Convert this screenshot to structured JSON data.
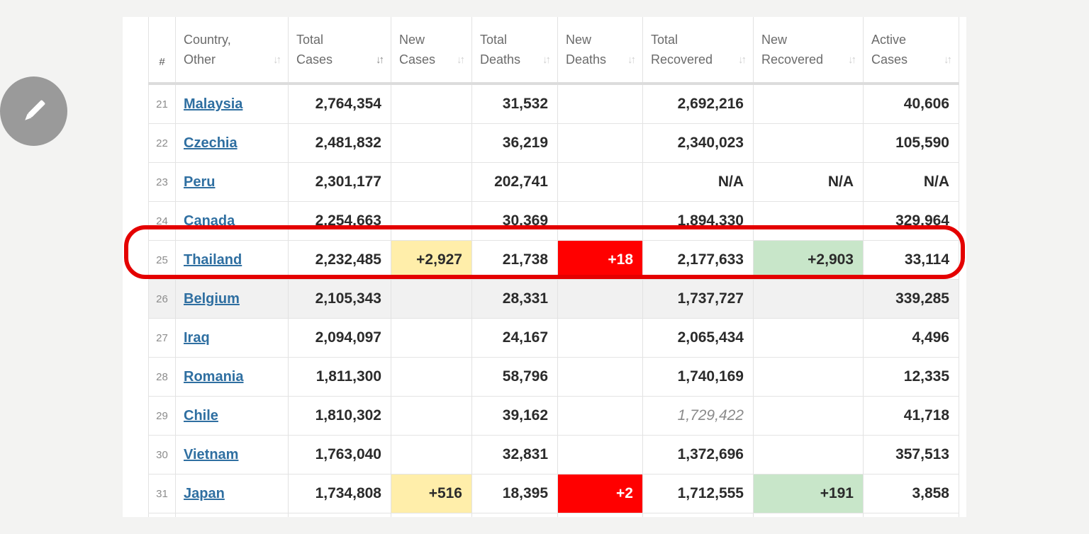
{
  "table": {
    "headers": {
      "hash": "#",
      "country": [
        "Country,",
        "Other"
      ],
      "total_cases": [
        "Total",
        "Cases"
      ],
      "new_cases": [
        "New",
        "Cases"
      ],
      "total_deaths": [
        "Total",
        "Deaths"
      ],
      "new_deaths": [
        "New",
        "Deaths"
      ],
      "total_recovered": [
        "Total",
        "Recovered"
      ],
      "new_recovered": [
        "New",
        "Recovered"
      ],
      "active_cases": [
        "Active",
        "Cases"
      ]
    },
    "sort_glyph": "↓↑",
    "rows": [
      {
        "num": "21",
        "country": "Malaysia",
        "total_cases": "2,764,354",
        "new_cases": "",
        "total_deaths": "31,532",
        "new_deaths": "",
        "total_recovered": "2,692,216",
        "new_recovered": "",
        "active_cases": "40,606"
      },
      {
        "num": "22",
        "country": "Czechia",
        "total_cases": "2,481,832",
        "new_cases": "",
        "total_deaths": "36,219",
        "new_deaths": "",
        "total_recovered": "2,340,023",
        "new_recovered": "",
        "active_cases": "105,590"
      },
      {
        "num": "23",
        "country": "Peru",
        "total_cases": "2,301,177",
        "new_cases": "",
        "total_deaths": "202,741",
        "new_deaths": "",
        "total_recovered": "N/A",
        "new_recovered": "N/A",
        "active_cases": "N/A"
      },
      {
        "num": "24",
        "country": "Canada",
        "total_cases": "2,254,663",
        "new_cases": "",
        "total_deaths": "30,369",
        "new_deaths": "",
        "total_recovered": "1,894,330",
        "new_recovered": "",
        "active_cases": "329,964"
      },
      {
        "num": "25",
        "country": "Thailand",
        "total_cases": "2,232,485",
        "new_cases": "+2,927",
        "total_deaths": "21,738",
        "new_deaths": "+18",
        "total_recovered": "2,177,633",
        "new_recovered": "+2,903",
        "active_cases": "33,114"
      },
      {
        "num": "26",
        "country": "Belgium",
        "total_cases": "2,105,343",
        "new_cases": "",
        "total_deaths": "28,331",
        "new_deaths": "",
        "total_recovered": "1,737,727",
        "new_recovered": "",
        "active_cases": "339,285"
      },
      {
        "num": "27",
        "country": "Iraq",
        "total_cases": "2,094,097",
        "new_cases": "",
        "total_deaths": "24,167",
        "new_deaths": "",
        "total_recovered": "2,065,434",
        "new_recovered": "",
        "active_cases": "4,496"
      },
      {
        "num": "28",
        "country": "Romania",
        "total_cases": "1,811,300",
        "new_cases": "",
        "total_deaths": "58,796",
        "new_deaths": "",
        "total_recovered": "1,740,169",
        "new_recovered": "",
        "active_cases": "12,335"
      },
      {
        "num": "29",
        "country": "Chile",
        "total_cases": "1,810,302",
        "new_cases": "",
        "total_deaths": "39,162",
        "new_deaths": "",
        "total_recovered": "1,729,422",
        "new_recovered": "",
        "active_cases": "41,718"
      },
      {
        "num": "30",
        "country": "Vietnam",
        "total_cases": "1,763,040",
        "new_cases": "",
        "total_deaths": "32,831",
        "new_deaths": "",
        "total_recovered": "1,372,696",
        "new_recovered": "",
        "active_cases": "357,513"
      },
      {
        "num": "31",
        "country": "Japan",
        "total_cases": "1,734,808",
        "new_cases": "+516",
        "total_deaths": "18,395",
        "new_deaths": "+2",
        "total_recovered": "1,712,555",
        "new_recovered": "+191",
        "active_cases": "3,858"
      }
    ]
  },
  "colors": {
    "highlight_ring": "#e40000",
    "new_cases_bg": "#ffeeaa",
    "new_deaths_bg": "#ff0000",
    "new_recovered_bg": "#c8e6c9",
    "link": "#2f6fa1"
  },
  "icons": {
    "edit_button": "pencil-icon"
  }
}
